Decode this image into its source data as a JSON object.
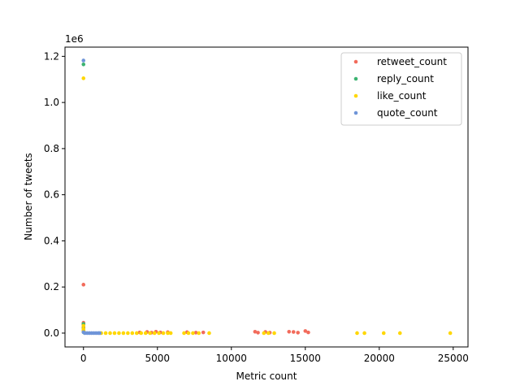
{
  "chart_data": {
    "type": "scatter",
    "title": "",
    "xlabel": "Metric count",
    "ylabel": "Number of tweets",
    "y_offset_label": "1e6",
    "xlim": [
      -1250,
      26000
    ],
    "ylim": [
      -60000,
      1240000
    ],
    "xticks": [
      0,
      5000,
      10000,
      15000,
      20000,
      25000
    ],
    "xtick_labels": [
      "0",
      "5000",
      "10000",
      "15000",
      "20000",
      "25000"
    ],
    "yticks": [
      0,
      200000,
      400000,
      600000,
      800000,
      1000000,
      1200000
    ],
    "ytick_labels": [
      "0.0",
      "0.2",
      "0.4",
      "0.6",
      "0.8",
      "1.0",
      "1.2"
    ],
    "legend_position": "top-right",
    "grid": false,
    "series": [
      {
        "name": "retweet_count",
        "color": "#f26b5b",
        "points": [
          [
            0,
            210000
          ],
          [
            0,
            45000
          ],
          [
            0,
            38000
          ],
          [
            0,
            25000
          ],
          [
            3,
            12000
          ],
          [
            8,
            6000
          ],
          [
            3800,
            3000
          ],
          [
            4300,
            5000
          ],
          [
            4600,
            2000
          ],
          [
            4900,
            6000
          ],
          [
            5200,
            3000
          ],
          [
            5700,
            4000
          ],
          [
            7000,
            4000
          ],
          [
            7600,
            2000
          ],
          [
            8100,
            3000
          ],
          [
            11600,
            6000
          ],
          [
            11800,
            2000
          ],
          [
            12300,
            5000
          ],
          [
            12600,
            2000
          ],
          [
            13900,
            6000
          ],
          [
            14200,
            5000
          ],
          [
            14500,
            2000
          ],
          [
            15000,
            9000
          ],
          [
            15200,
            3000
          ]
        ]
      },
      {
        "name": "reply_count",
        "color": "#3cb371",
        "points": [
          [
            0,
            1165000
          ],
          [
            0,
            40000
          ],
          [
            0,
            20000
          ],
          [
            5,
            8000
          ],
          [
            20,
            3000
          ],
          [
            60,
            1500
          ]
        ]
      },
      {
        "name": "like_count",
        "color": "#ffd700",
        "points": [
          [
            0,
            1105000
          ],
          [
            0,
            32000
          ],
          [
            0,
            18000
          ],
          [
            4,
            9000
          ],
          [
            1200,
            0
          ],
          [
            1500,
            0
          ],
          [
            1800,
            0
          ],
          [
            2100,
            0
          ],
          [
            2400,
            0
          ],
          [
            2700,
            0
          ],
          [
            3000,
            0
          ],
          [
            3300,
            0
          ],
          [
            3600,
            0
          ],
          [
            3900,
            0
          ],
          [
            4200,
            0
          ],
          [
            4500,
            0
          ],
          [
            4800,
            0
          ],
          [
            5100,
            0
          ],
          [
            5400,
            0
          ],
          [
            5700,
            0
          ],
          [
            5900,
            0
          ],
          [
            6800,
            0
          ],
          [
            7100,
            0
          ],
          [
            7400,
            0
          ],
          [
            7800,
            0
          ],
          [
            8500,
            0
          ],
          [
            12200,
            0
          ],
          [
            12500,
            0
          ],
          [
            12900,
            0
          ],
          [
            18500,
            0
          ],
          [
            19000,
            0
          ],
          [
            20300,
            0
          ],
          [
            21400,
            0
          ],
          [
            24800,
            0
          ]
        ]
      },
      {
        "name": "quote_count",
        "color": "#6f95d8",
        "points": [
          [
            0,
            1182000
          ],
          [
            0,
            4000
          ],
          [
            100,
            0
          ],
          [
            250,
            0
          ],
          [
            400,
            0
          ],
          [
            550,
            0
          ],
          [
            700,
            0
          ],
          [
            850,
            0
          ],
          [
            1000,
            0
          ],
          [
            1100,
            0
          ]
        ]
      }
    ]
  }
}
